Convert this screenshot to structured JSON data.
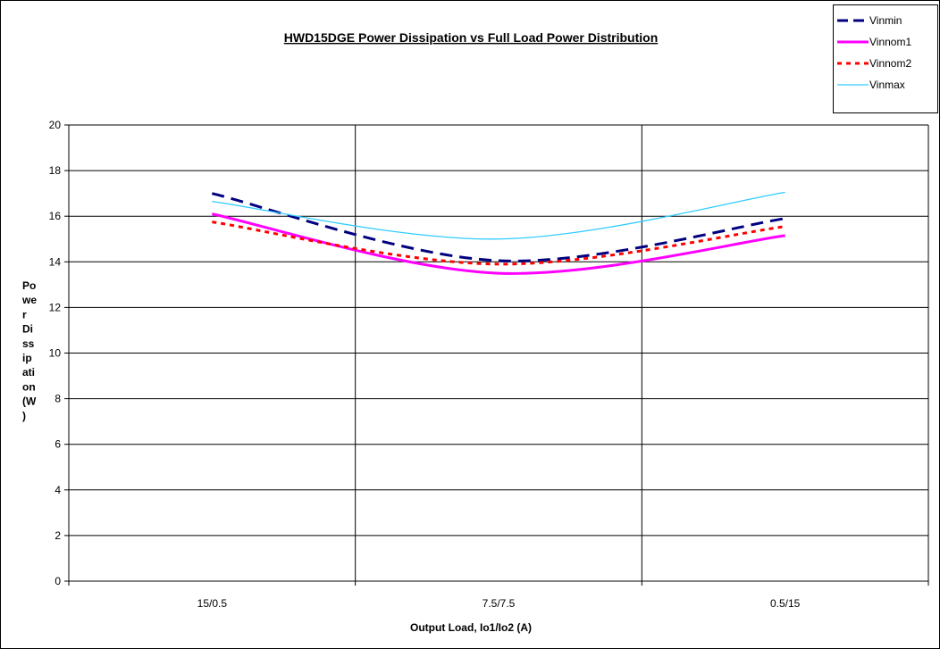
{
  "chart_data": {
    "type": "line",
    "title": "HWD15DGE Power Dissipation vs Full Load Power Distribution",
    "xlabel": "Output Load, Io1/Io2 (A)",
    "ylabel": "Power Dissipation (W)",
    "ylabel_wrapped": [
      "Po",
      "we",
      "r",
      "Di",
      "ss",
      "ip",
      "ati",
      "on",
      "(W",
      ")"
    ],
    "categories": [
      "15/0.5",
      "7.5/7.5",
      "0.5/15"
    ],
    "ylim": [
      0,
      20
    ],
    "ytick_step": 2,
    "yticks": [
      "0",
      "2",
      "4",
      "6",
      "8",
      "10",
      "12",
      "14",
      "16",
      "18",
      "20"
    ],
    "grid": "horizontal and vertical",
    "legend_position": "top-right",
    "series": [
      {
        "name": "Vinmin",
        "values": [
          17.0,
          14.05,
          15.9
        ],
        "color": "#000080",
        "style": "dashed"
      },
      {
        "name": "Vinnom1",
        "values": [
          16.1,
          13.5,
          15.15
        ],
        "color": "#ff00ff",
        "style": "solid"
      },
      {
        "name": "Vinnom2",
        "values": [
          15.75,
          13.9,
          15.55
        ],
        "color": "#ff0000",
        "style": "dotted"
      },
      {
        "name": "Vinmax",
        "values": [
          16.65,
          15.0,
          17.05
        ],
        "color": "#33ccff",
        "style": "thin"
      }
    ]
  }
}
